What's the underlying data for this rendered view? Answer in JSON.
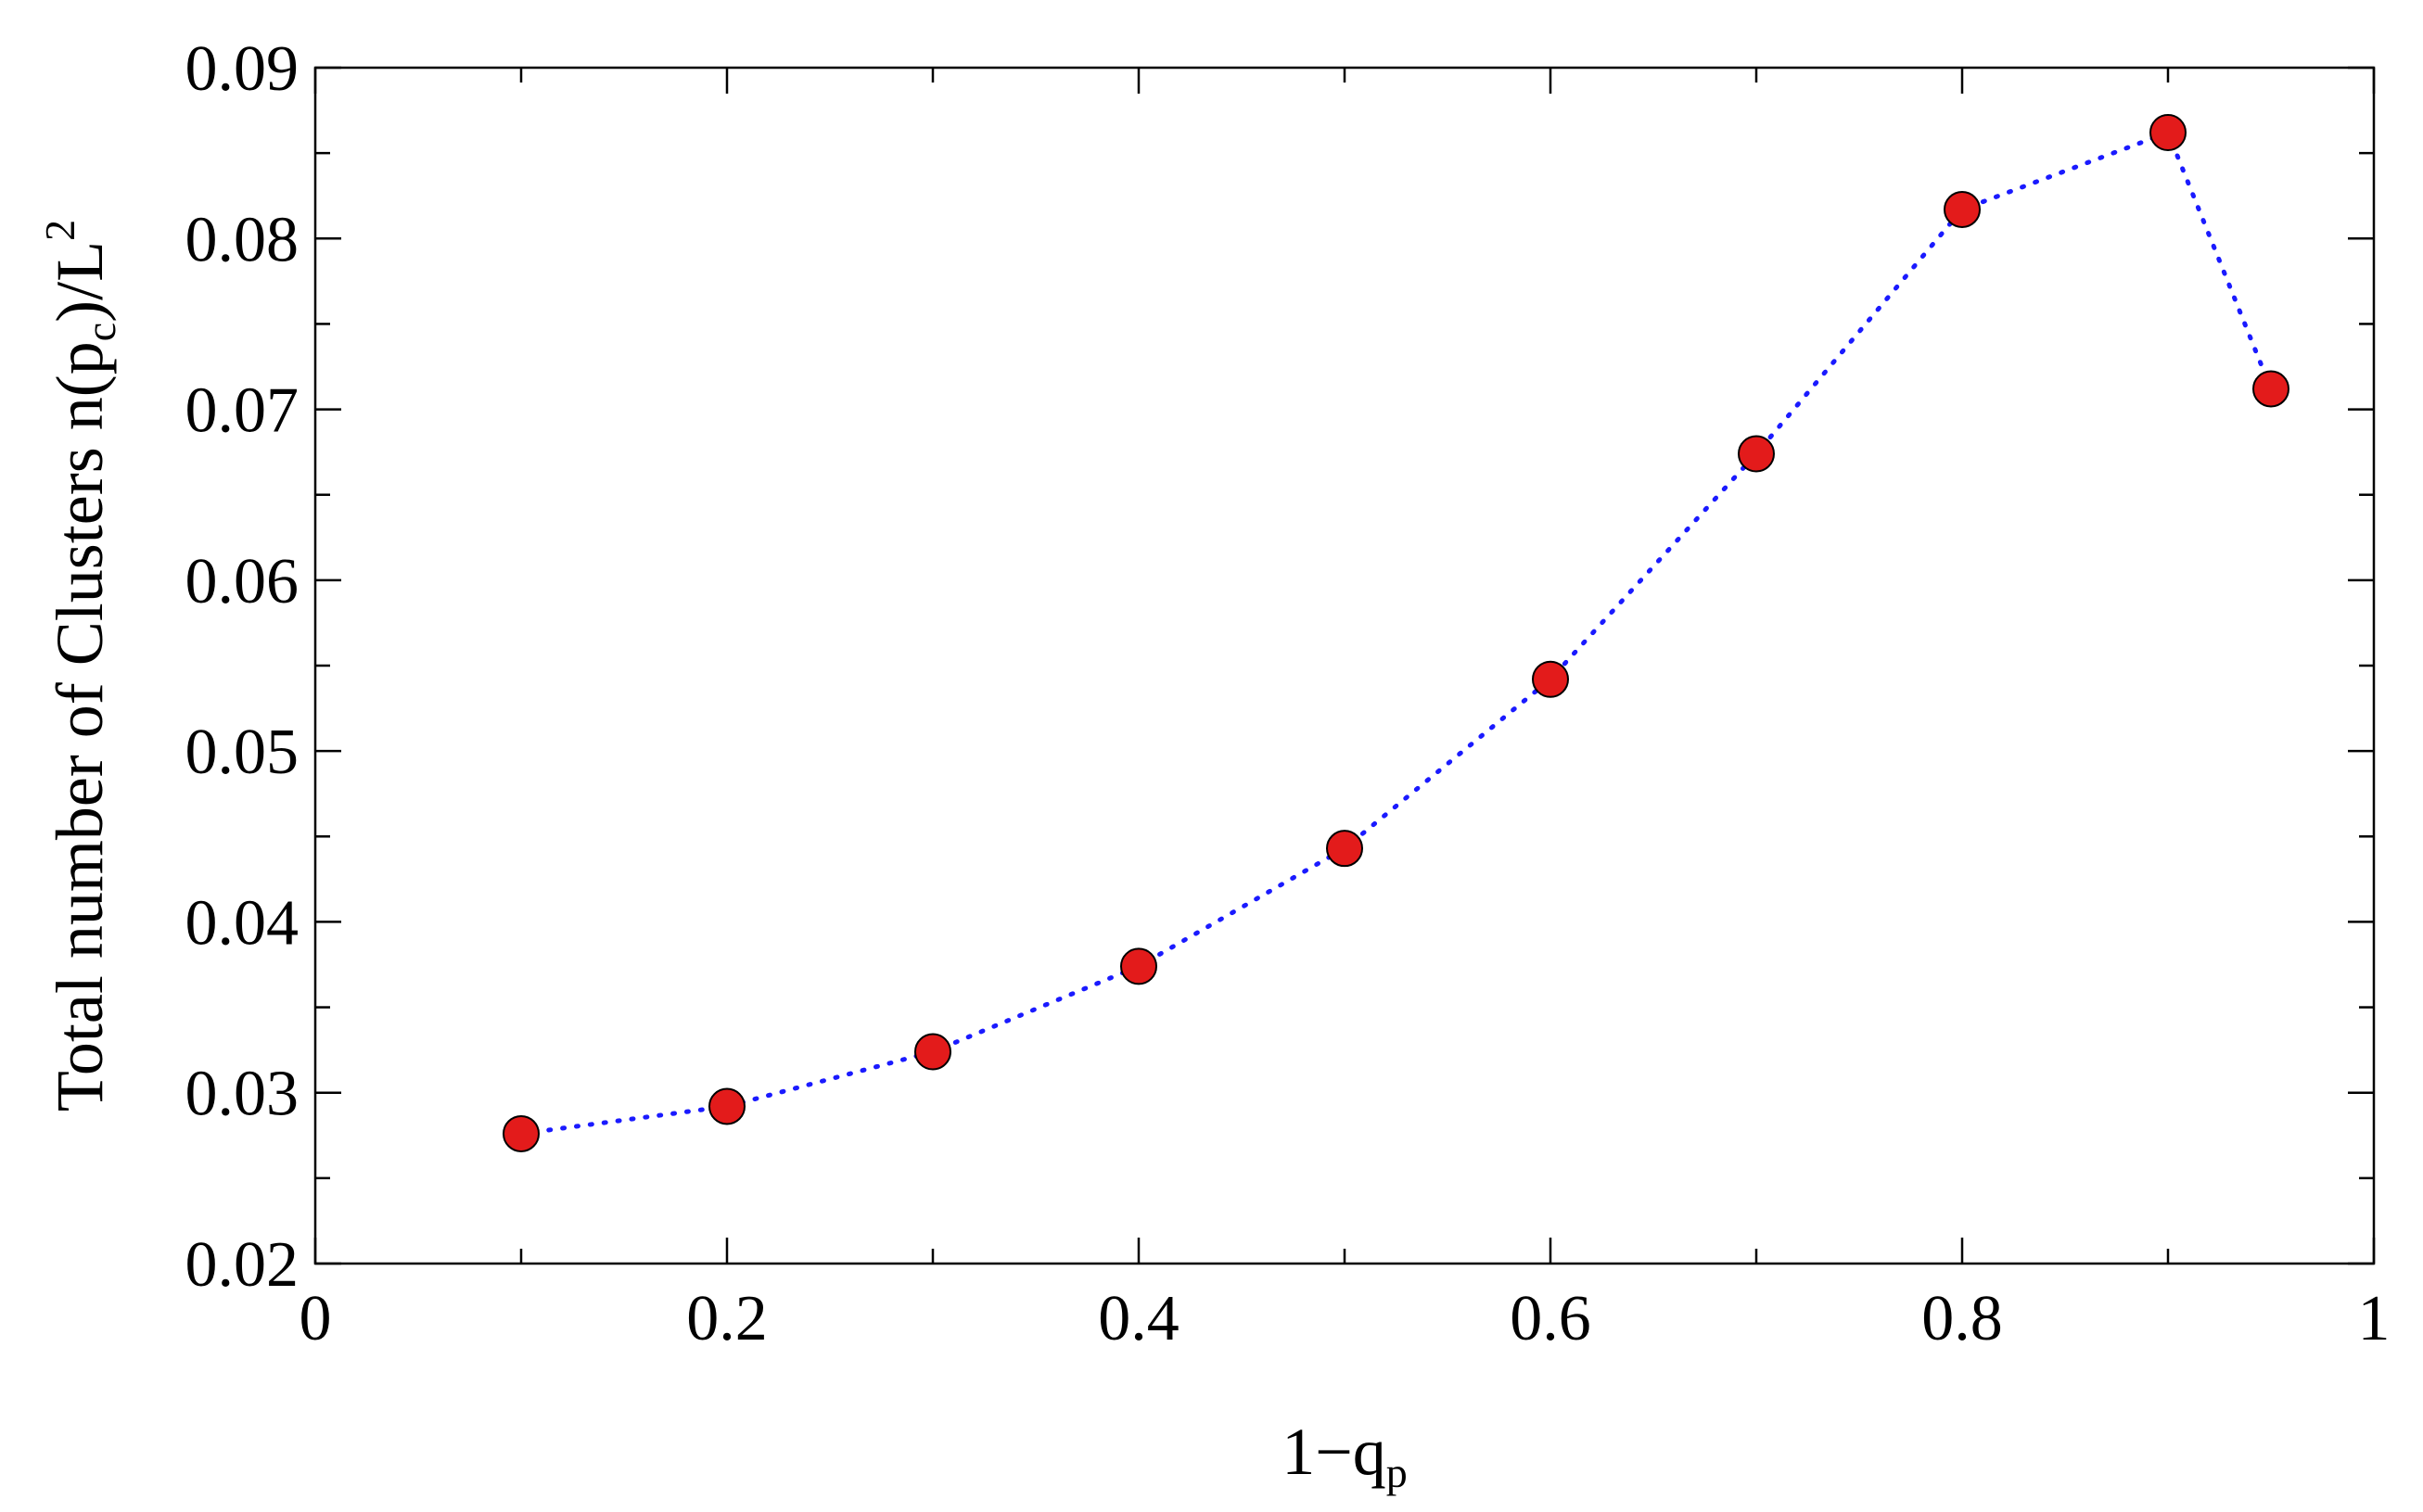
{
  "chart_data": {
    "type": "scatter",
    "x": [
      0.1,
      0.2,
      0.3,
      0.4,
      0.5,
      0.6,
      0.7,
      0.8,
      0.9,
      0.95
    ],
    "y": [
      0.0276,
      0.0292,
      0.0324,
      0.0374,
      0.0443,
      0.0542,
      0.0674,
      0.0817,
      0.0862,
      0.0712
    ],
    "xlim": [
      0,
      1
    ],
    "ylim": [
      0.02,
      0.09
    ],
    "xticks": [
      "0",
      "0.2",
      "0.4",
      "0.6",
      "0.8",
      "1"
    ],
    "xtick_values": [
      0,
      0.2,
      0.4,
      0.6,
      0.8,
      1
    ],
    "yticks": [
      "0.02",
      "0.03",
      "0.04",
      "0.05",
      "0.06",
      "0.07",
      "0.08",
      "0.09"
    ],
    "ytick_values": [
      0.02,
      0.03,
      0.04,
      0.05,
      0.06,
      0.07,
      0.08,
      0.09
    ],
    "xlabel": {
      "main": "1−q",
      "sub": "p"
    },
    "ylabel": {
      "part1": "Total number of Clusters n(p",
      "sub": "c",
      "part2": ")/L",
      "sup": "2"
    },
    "line_style": "dotted",
    "colors": {
      "line": "#1a1aff",
      "marker": "#e31b1b",
      "marker_edge": "#000000"
    },
    "grid": false,
    "legend": "none"
  }
}
